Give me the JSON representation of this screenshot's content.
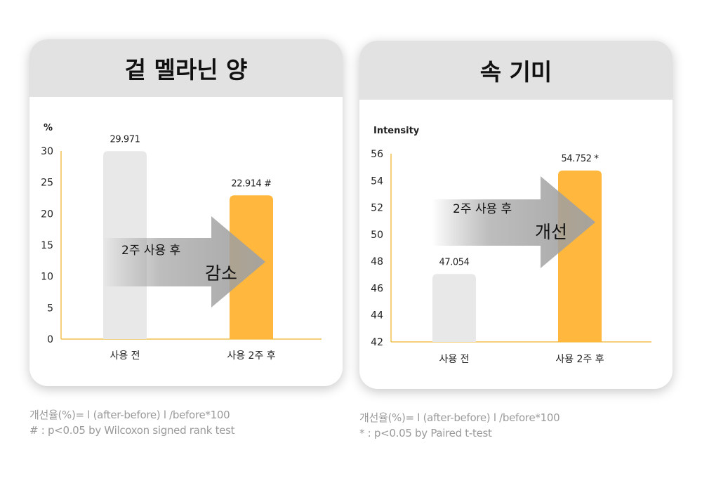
{
  "chart_data": [
    {
      "type": "bar",
      "title": "겉 멜라닌 양",
      "ylabel": "%",
      "ylim": [
        0,
        30
      ],
      "yticks": [
        0,
        5,
        10,
        15,
        20,
        25,
        30
      ],
      "categories": [
        "사용 전",
        "사용 2주 후"
      ],
      "values": [
        29.971,
        22.914
      ],
      "data_labels": [
        "29.971",
        "22.914 #"
      ],
      "bar_colors": [
        "#e8e8e8",
        "#ffb73d"
      ],
      "arrow": {
        "line1": "2주 사용 후",
        "line2": "감소"
      },
      "grid": false
    },
    {
      "type": "bar",
      "title": "속 기미",
      "ylabel": "Intensity",
      "ylim": [
        42,
        56
      ],
      "yticks": [
        42,
        44,
        46,
        48,
        50,
        52,
        54,
        56
      ],
      "categories": [
        "사용 전",
        "사용 2주 후"
      ],
      "values": [
        47.054,
        54.752
      ],
      "data_labels": [
        "47.054",
        "54.752 *"
      ],
      "bar_colors": [
        "#e8e8e8",
        "#ffb73d"
      ],
      "arrow": {
        "line1": "2주 사용 후",
        "line2": "개선"
      },
      "grid": false
    }
  ],
  "footnotes": {
    "left": [
      "개선율(%)= l (after-before) l /before*100",
      "# : p<0.05 by Wilcoxon signed rank test"
    ],
    "right": [
      "개선율(%)= l (after-before) l /before*100",
      "* : p<0.05 by Paired t-test"
    ]
  },
  "colors": {
    "header_bg": "#e2e2e2",
    "accent": "#ffb73d",
    "axis": "#f0c050"
  }
}
